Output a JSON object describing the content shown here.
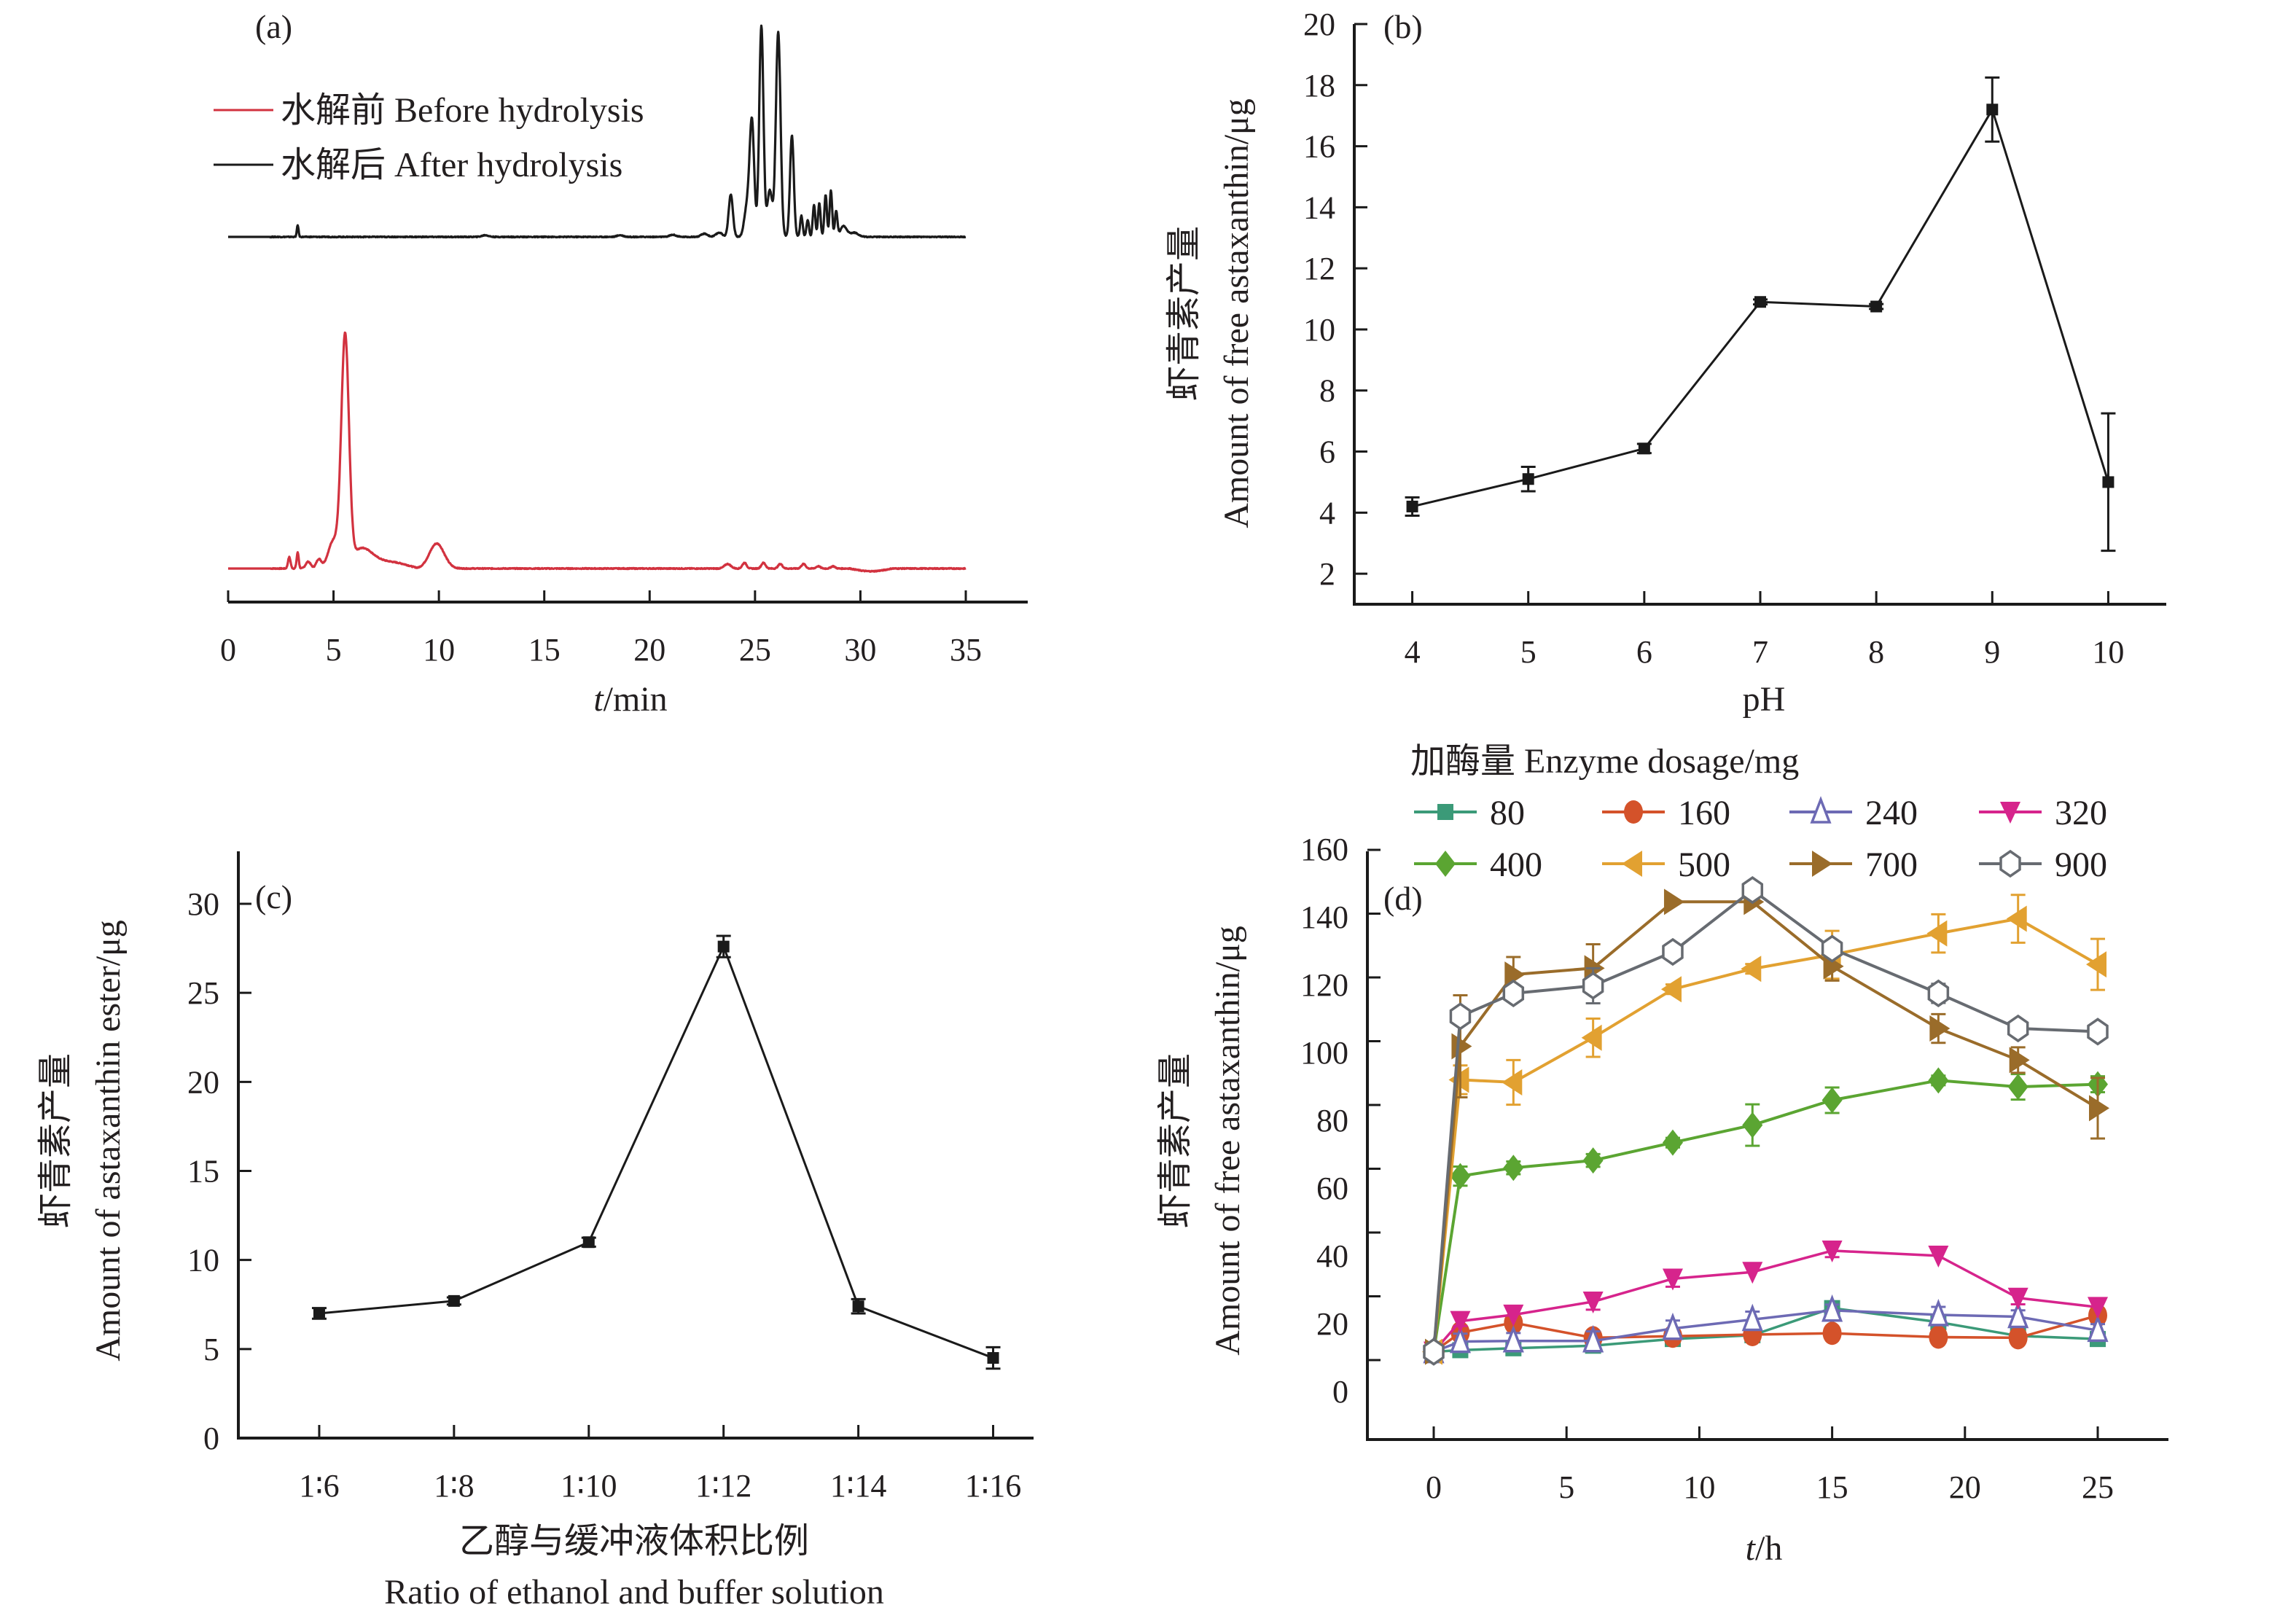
{
  "chart_data": [
    {
      "id": "a",
      "type": "line",
      "panel_label": "(a)",
      "title": "",
      "xlabel_italic": "t",
      "xlabel_rest": "/min",
      "ylabel": "",
      "xlim": [
        0,
        35
      ],
      "x_ticks": [
        0,
        5,
        10,
        15,
        20,
        25,
        30,
        35
      ],
      "y_axis_shown": false,
      "legend_position": "top-left",
      "series": [
        {
          "name": "水解前 Before hydrolysis",
          "color": "#d2323f",
          "baseline": 0.0,
          "noise_from": 2.2,
          "peaks": [
            {
              "t": 2.9,
              "h": 0.05,
              "w": 0.06
            },
            {
              "t": 3.3,
              "h": 0.07,
              "w": 0.05
            },
            {
              "t": 3.8,
              "h": 0.03,
              "w": 0.12
            },
            {
              "t": 4.3,
              "h": 0.04,
              "w": 0.12
            },
            {
              "t": 5.0,
              "h": 0.12,
              "w": 0.25
            },
            {
              "t": 5.55,
              "h": 1.0,
              "w": 0.18
            },
            {
              "t": 6.3,
              "h": 0.08,
              "w": 0.5
            },
            {
              "t": 9.9,
              "h": 0.11,
              "w": 0.35
            },
            {
              "t": 23.7,
              "h": 0.02,
              "w": 0.15
            },
            {
              "t": 24.5,
              "h": 0.025,
              "w": 0.1
            },
            {
              "t": 25.4,
              "h": 0.025,
              "w": 0.1
            },
            {
              "t": 26.2,
              "h": 0.02,
              "w": 0.1
            },
            {
              "t": 27.3,
              "h": 0.02,
              "w": 0.1
            },
            {
              "t": 28.0,
              "h": 0.01,
              "w": 0.1
            },
            {
              "t": 28.7,
              "h": 0.01,
              "w": 0.1
            }
          ],
          "drifts": [
            {
              "from": 6.0,
              "to": 9.0,
              "value": 0.03
            },
            {
              "from": 29.5,
              "to": 31.5,
              "value": -0.012
            }
          ]
        },
        {
          "name": "水解后 After hydrolysis",
          "color": "#1a1a1a",
          "baseline": 0.0,
          "peaks": [
            {
              "t": 3.3,
              "h": 0.055,
              "w": 0.04
            },
            {
              "t": 12.2,
              "h": 0.008,
              "w": 0.15
            },
            {
              "t": 18.6,
              "h": 0.008,
              "w": 0.15
            },
            {
              "t": 21.1,
              "h": 0.01,
              "w": 0.15
            },
            {
              "t": 22.6,
              "h": 0.015,
              "w": 0.15
            },
            {
              "t": 23.3,
              "h": 0.02,
              "w": 0.15
            },
            {
              "t": 23.85,
              "h": 0.2,
              "w": 0.1
            },
            {
              "t": 24.6,
              "h": 0.13,
              "w": 0.12
            },
            {
              "t": 24.85,
              "h": 0.55,
              "w": 0.11
            },
            {
              "t": 25.3,
              "h": 1.0,
              "w": 0.1
            },
            {
              "t": 25.7,
              "h": 0.22,
              "w": 0.12
            },
            {
              "t": 26.1,
              "h": 0.97,
              "w": 0.11
            },
            {
              "t": 26.75,
              "h": 0.48,
              "w": 0.09
            },
            {
              "t": 27.2,
              "h": 0.1,
              "w": 0.06
            },
            {
              "t": 27.5,
              "h": 0.08,
              "w": 0.06
            },
            {
              "t": 27.8,
              "h": 0.15,
              "w": 0.06
            },
            {
              "t": 28.05,
              "h": 0.16,
              "w": 0.06
            },
            {
              "t": 28.35,
              "h": 0.2,
              "w": 0.06
            },
            {
              "t": 28.6,
              "h": 0.22,
              "w": 0.06
            },
            {
              "t": 28.85,
              "h": 0.12,
              "w": 0.06
            },
            {
              "t": 29.2,
              "h": 0.05,
              "w": 0.15
            },
            {
              "t": 29.7,
              "h": 0.02,
              "w": 0.2
            }
          ],
          "drifts": []
        }
      ]
    },
    {
      "id": "b",
      "type": "line",
      "panel_label": "(b)",
      "title": "",
      "xlabel": "pH",
      "ylabel_cn": "虾青素产量",
      "ylabel_en": "Amount of free astaxanthin/μg",
      "xlim": [
        3.5,
        10.5
      ],
      "ylim": [
        1,
        20
      ],
      "x_ticks": [
        4,
        5,
        6,
        7,
        8,
        9,
        10
      ],
      "y_ticks": [
        2,
        4,
        6,
        8,
        10,
        12,
        14,
        16,
        18,
        20
      ],
      "grid": false,
      "color": "#1a1a1a",
      "x": [
        4,
        5,
        6,
        7,
        8,
        9,
        10
      ],
      "y": [
        4.2,
        5.1,
        6.1,
        10.9,
        10.75,
        17.2,
        5.0
      ],
      "error": [
        0.3,
        0.4,
        0.15,
        0.08,
        0.08,
        1.05,
        2.25
      ]
    },
    {
      "id": "c",
      "type": "line",
      "panel_label": "(c)",
      "title": "",
      "xlabel_cn": "乙醇与缓冲液体积比例",
      "xlabel_en": "Ratio of ethanol and buffer solution",
      "ylabel_cn": "虾青素产量",
      "ylabel_en": "Amount of astaxanthin ester/μg",
      "categories": [
        "1∶6",
        "1∶8",
        "1∶10",
        "1∶12",
        "1∶14",
        "1∶16"
      ],
      "ylim": [
        0,
        32.5
      ],
      "y_ticks": [
        0,
        5,
        10,
        15,
        20,
        25,
        30
      ],
      "grid": false,
      "color": "#1a1a1a",
      "values": [
        7.0,
        7.7,
        11.0,
        27.6,
        7.4,
        4.5
      ],
      "error": [
        0.3,
        0.2,
        0.25,
        0.6,
        0.4,
        0.6
      ]
    },
    {
      "id": "d",
      "type": "line",
      "panel_label": "(d)",
      "title": "",
      "legend_title": "加酶量 Enzyme dosage/mg",
      "legend_position": "top",
      "xlabel_italic": "t",
      "xlabel_rest": "/h",
      "ylabel_cn": "虾青素产量",
      "ylabel_en": "Amount of free astaxanthin/μg",
      "xlim": [
        -3.5,
        27
      ],
      "ylim": [
        -10,
        160
      ],
      "x_ticks": [
        0,
        5,
        10,
        15,
        20,
        25
      ],
      "y_ticks": [
        0,
        20,
        40,
        60,
        80,
        100,
        120,
        140,
        160
      ],
      "grid": false,
      "x": [
        0,
        1,
        3,
        6,
        9,
        12,
        15,
        19,
        22,
        25
      ],
      "series": [
        {
          "name": "80",
          "color": "#3b9a78",
          "marker": "square",
          "values": [
            2.6,
            3.1,
            3.7,
            4.5,
            6.6,
            7.8,
            16.3,
            11.9,
            7.6,
            6.6
          ],
          "error": [
            1,
            0.8,
            0.8,
            0.8,
            0.8,
            0.8,
            1.2,
            1.0,
            0.8,
            0.8
          ]
        },
        {
          "name": "160",
          "color": "#d4522a",
          "marker": "circle",
          "values": [
            2.6,
            8.6,
            11.7,
            7.0,
            7.5,
            8.0,
            8.4,
            7.2,
            7.0,
            14.0
          ],
          "error": [
            1,
            1.2,
            1.0,
            1.0,
            0.8,
            0.8,
            0.8,
            1.0,
            1.0,
            1.0
          ]
        },
        {
          "name": "240",
          "color": "#6d6ab4",
          "marker": "triangle-up-open",
          "values": [
            2.6,
            5.8,
            6.0,
            6.0,
            9.9,
            12.7,
            15.6,
            14.2,
            13.6,
            9.3
          ],
          "error": [
            1,
            2.5,
            2.5,
            3.0,
            2.5,
            2.5,
            1.8,
            2.5,
            2.0,
            2.0
          ]
        },
        {
          "name": "320",
          "color": "#d6248c",
          "marker": "triangle-down",
          "values": [
            2.6,
            12.2,
            14.2,
            18.3,
            25.5,
            27.6,
            34.3,
            32.7,
            19.5,
            16.6
          ],
          "error": [
            1,
            1.5,
            1.0,
            2.5,
            2.5,
            1.0,
            2.0,
            1.0,
            2.0,
            1.0
          ]
        },
        {
          "name": "400",
          "color": "#5ba532",
          "marker": "diamond",
          "values": [
            2.6,
            57.7,
            60.3,
            62.6,
            68.2,
            73.7,
            81.5,
            87.7,
            85.7,
            86.5
          ],
          "error": [
            1,
            3.0,
            2.0,
            2.0,
            1.5,
            6.5,
            4.0,
            1.5,
            4.0,
            2.5
          ]
        },
        {
          "name": "500",
          "color": "#e2a131",
          "marker": "triangle-left",
          "values": [
            2.6,
            87.9,
            87.1,
            101.1,
            116.3,
            122.7,
            127.1,
            133.8,
            138.4,
            124.1
          ],
          "error": [
            1,
            4.5,
            7.0,
            6.0,
            1.5,
            1.5,
            7.5,
            6.0,
            7.5,
            8.0
          ]
        },
        {
          "name": "700",
          "color": "#9a6c2a",
          "marker": "triangle-right",
          "values": [
            2.6,
            98.4,
            120.9,
            122.9,
            143.7,
            143.7,
            123.5,
            104.0,
            94.1,
            79.0
          ],
          "error": [
            1,
            16.0,
            5.5,
            7.5,
            1.0,
            1.0,
            4.5,
            4.5,
            4.0,
            9.5
          ]
        },
        {
          "name": "900",
          "color": "#676b71",
          "marker": "hexagon-open",
          "values": [
            2.6,
            107.8,
            115.0,
            117.4,
            128.0,
            147.4,
            129.0,
            115.0,
            104.0,
            103.0
          ],
          "error": [
            1,
            1.5,
            1.5,
            5.5,
            1.0,
            2.0,
            2.0,
            3.0,
            1.0,
            1.0
          ]
        }
      ]
    }
  ]
}
